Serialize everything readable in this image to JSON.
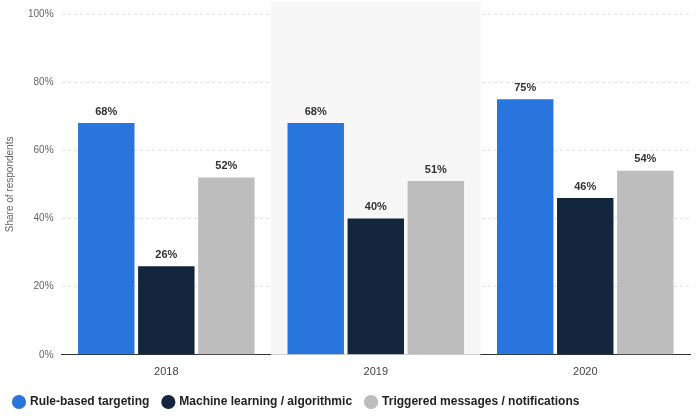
{
  "chart_data": {
    "type": "bar",
    "y_label": "Share of respondents",
    "categories": [
      "2018",
      "2019",
      "2020"
    ],
    "series": [
      {
        "name": "Rule-based targeting",
        "color": "#2876dd",
        "values": [
          68,
          68,
          75
        ],
        "value_labels": [
          "68%",
          "68%",
          "75%"
        ]
      },
      {
        "name": "Machine learning / algorithmic",
        "color": "#14263d",
        "values": [
          26,
          40,
          46
        ],
        "value_labels": [
          "26%",
          "40%",
          "46%"
        ]
      },
      {
        "name": "Triggered messages / notifications",
        "color": "#bdbdbd",
        "values": [
          52,
          51,
          54
        ],
        "value_labels": [
          "52%",
          "51%",
          "54%"
        ]
      }
    ],
    "ylim": [
      0,
      100
    ],
    "yticks": [
      {
        "value": 0,
        "label": "0%"
      },
      {
        "value": 20,
        "label": "20%"
      },
      {
        "value": 40,
        "label": "40%"
      },
      {
        "value": 60,
        "label": "60%"
      },
      {
        "value": 80,
        "label": "80%"
      },
      {
        "value": 100,
        "label": "100%"
      }
    ],
    "grid": true,
    "legend": "bottom-left",
    "data_labels": true
  }
}
